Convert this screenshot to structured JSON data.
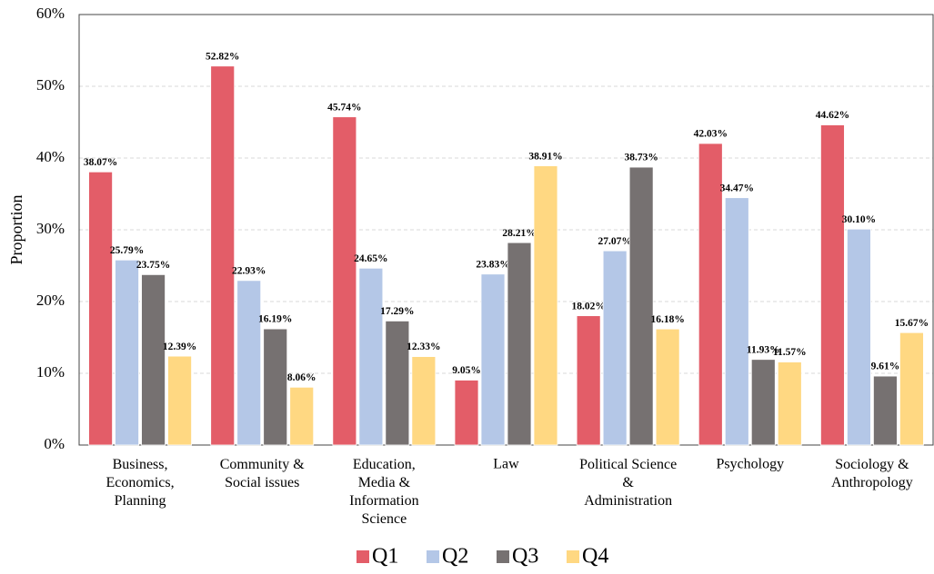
{
  "chart_data": {
    "type": "bar",
    "y_label": "Proportion",
    "categories": [
      "Business,\nEconomics,\nPlanning",
      "Community &\nSocial issues",
      "Education,\nMedia &\nInformation\nScience",
      "Law",
      "Political Science\n&\nAdministration",
      "Psychology",
      "Sociology &\nAnthropology"
    ],
    "series": [
      {
        "name": "Q1",
        "color": "#e35d68",
        "values": [
          38.07,
          52.82,
          45.74,
          9.05,
          18.02,
          42.03,
          44.62
        ],
        "value_labels": [
          "38.07%",
          "52.82%",
          "45.74%",
          "9.05%",
          "18.02%",
          "42.03%",
          "44.62%"
        ]
      },
      {
        "name": "Q2",
        "color": "#b4c7e7",
        "values": [
          25.79,
          22.93,
          24.65,
          23.83,
          27.07,
          34.47,
          30.1
        ],
        "value_labels": [
          "25.79%",
          "22.93%",
          "24.65%",
          "23.83%",
          "27.07%",
          "34.47%",
          "30.10%"
        ]
      },
      {
        "name": "Q3",
        "color": "#767171",
        "values": [
          23.75,
          16.19,
          17.29,
          28.21,
          38.73,
          11.93,
          9.61
        ],
        "value_labels": [
          "23.75%",
          "16.19%",
          "17.29%",
          "28.21%",
          "38.73%",
          "11.93%",
          "9.61%"
        ]
      },
      {
        "name": "Q4",
        "color": "#ffd882",
        "values": [
          12.39,
          8.06,
          12.33,
          38.91,
          16.18,
          11.57,
          15.67
        ],
        "value_labels": [
          "12.39%",
          "8.06%",
          "12.33%",
          "38.91%",
          "16.18%",
          "11.57%",
          "15.67%"
        ]
      }
    ],
    "ylim": [
      0,
      60
    ],
    "yticks": [
      {
        "value": 0,
        "label": "0%"
      },
      {
        "value": 10,
        "label": "10%"
      },
      {
        "value": 20,
        "label": "20%"
      },
      {
        "value": 30,
        "label": "30%"
      },
      {
        "value": 40,
        "label": "40%"
      },
      {
        "value": 50,
        "label": "50%"
      },
      {
        "value": 60,
        "label": "60%"
      }
    ],
    "grid": true,
    "legend": "bottom"
  }
}
